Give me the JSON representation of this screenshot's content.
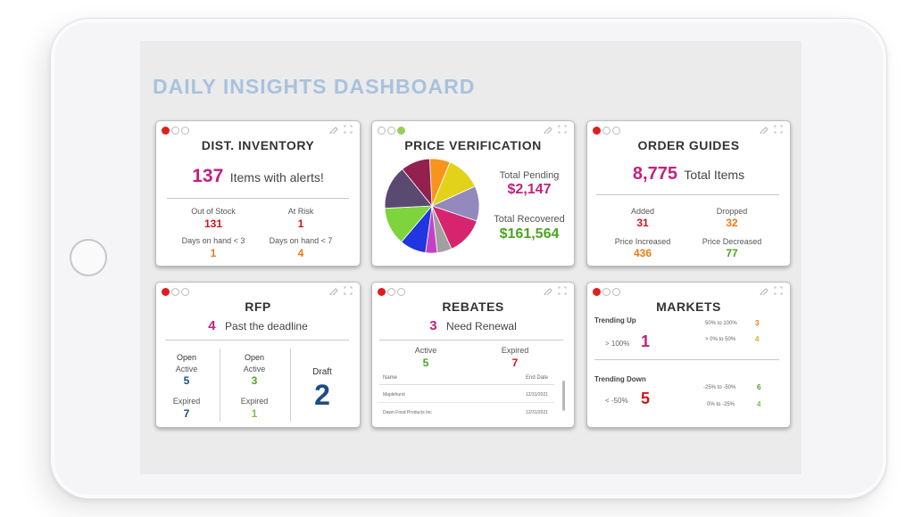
{
  "dashboard": {
    "title": "DAILY INSIGHTS DASHBOARD"
  },
  "inventory": {
    "title": "DIST. INVENTORY",
    "count": "137",
    "count_label": "Items with alerts!",
    "out_of_stock_label": "Out of Stock",
    "out_of_stock": "131",
    "at_risk_label": "At Risk",
    "at_risk": "1",
    "days_lt3_label": "Days on hand < 3",
    "days_lt3": "1",
    "days_lt7_label": "Days on hand < 7",
    "days_lt7": "4"
  },
  "price": {
    "title": "PRICE VERIFICATION",
    "pending_label": "Total Pending",
    "pending": "$2,147",
    "recovered_label": "Total Recovered",
    "recovered": "$161,564",
    "pie_colors": [
      "#f7941d",
      "#e3d21a",
      "#9389bd",
      "#d6256e",
      "#a0a0a0",
      "#c341c8",
      "#1f36e0",
      "#7ed43c",
      "#5a4a72",
      "#92214f"
    ],
    "pie_values": [
      7,
      12,
      12,
      13,
      5,
      4,
      9,
      13,
      15,
      10
    ]
  },
  "orders": {
    "title": "ORDER GUIDES",
    "count": "8,775",
    "count_label": "Total Items",
    "added_label": "Added",
    "added": "31",
    "dropped_label": "Dropped",
    "dropped": "32",
    "inc_label": "Price Increased",
    "inc": "436",
    "dec_label": "Price Decreased",
    "dec": "77"
  },
  "rfp": {
    "title": "RFP",
    "count": "4",
    "count_label": "Past the deadline",
    "col1_open": "Open",
    "col1_active_label": "Active",
    "col1_active": "5",
    "col1_expired_label": "Expired",
    "col1_expired": "7",
    "col2_open": "Open",
    "col2_active_label": "Active",
    "col2_active": "3",
    "col2_expired_label": "Expired",
    "col2_expired": "1",
    "draft_label": "Draft",
    "draft": "2"
  },
  "rebates": {
    "title": "REBATES",
    "count": "3",
    "count_label": "Need Renewal",
    "active_label": "Active",
    "active": "5",
    "expired_label": "Expired",
    "expired": "7",
    "col_name": "Name",
    "col_end": "End Date",
    "rows": [
      {
        "name": "Maplehurst",
        "end": "12/31/2021"
      },
      {
        "name": "Dawn Food Products Inc",
        "end": "12/31/2021"
      }
    ]
  },
  "markets": {
    "title": "MARKETS",
    "up_label": "Trending Up",
    "up_range": "> 100%",
    "up_count": "1",
    "up_r1": "50% to 100%",
    "up_v1": "3",
    "up_r2": "> 0% to 50%",
    "up_v2": "4",
    "down_label": "Trending Down",
    "down_range": "< -50%",
    "down_count": "5",
    "down_r1": "-25% to -50%",
    "down_v1": "6",
    "down_r2": "0% to -25%",
    "down_v2": "4"
  }
}
